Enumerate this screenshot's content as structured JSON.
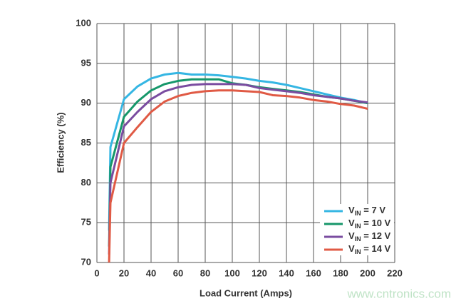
{
  "chart_data": {
    "type": "line",
    "x_label": "Load Current (Amps)",
    "y_label": "Efficiency (%)",
    "x": [
      9,
      10,
      20,
      30,
      40,
      50,
      60,
      70,
      80,
      90,
      100,
      110,
      120,
      130,
      140,
      150,
      160,
      170,
      180,
      190,
      200
    ],
    "series": [
      {
        "name": "VIN = 7 V",
        "color": "#35b6e3",
        "values": [
          74,
          84.5,
          90.5,
          92.1,
          93.1,
          93.6,
          93.8,
          93.6,
          93.6,
          93.5,
          93.3,
          93.1,
          92.8,
          92.6,
          92.3,
          91.9,
          91.5,
          91.1,
          90.7,
          90.4,
          90.0
        ]
      },
      {
        "name": "VIN = 10 V",
        "color": "#16976a",
        "values": [
          72,
          82,
          88.3,
          90.2,
          91.6,
          92.4,
          92.8,
          93.0,
          93.0,
          93.0,
          92.5,
          92.3,
          92.0,
          91.8,
          91.6,
          91.4,
          91.1,
          90.8,
          90.6,
          90.3,
          90.0
        ]
      },
      {
        "name": "VIN = 12 V",
        "color": "#7a4ca0",
        "values": [
          71,
          80,
          87.1,
          88.9,
          90.5,
          91.5,
          92.0,
          92.3,
          92.4,
          92.4,
          92.4,
          92.3,
          91.9,
          91.7,
          91.5,
          91.3,
          91.0,
          90.8,
          90.6,
          90.3,
          90.1
        ]
      },
      {
        "name": "VIN = 14 V",
        "color": "#e05a45",
        "values": [
          70,
          77.5,
          85,
          87.0,
          88.9,
          90.2,
          90.9,
          91.3,
          91.5,
          91.6,
          91.6,
          91.5,
          91.4,
          91.0,
          90.9,
          90.7,
          90.4,
          90.2,
          89.9,
          89.7,
          89.3
        ]
      }
    ],
    "xlim": [
      0,
      220
    ],
    "xticks": [
      0,
      20,
      40,
      60,
      80,
      100,
      120,
      140,
      160,
      180,
      200,
      220
    ],
    "ylim": [
      70,
      100
    ],
    "yticks": [
      70,
      75,
      80,
      85,
      90,
      95,
      100
    ],
    "grid": true,
    "legend": "lower right"
  },
  "watermark": "www.cntronics.com"
}
